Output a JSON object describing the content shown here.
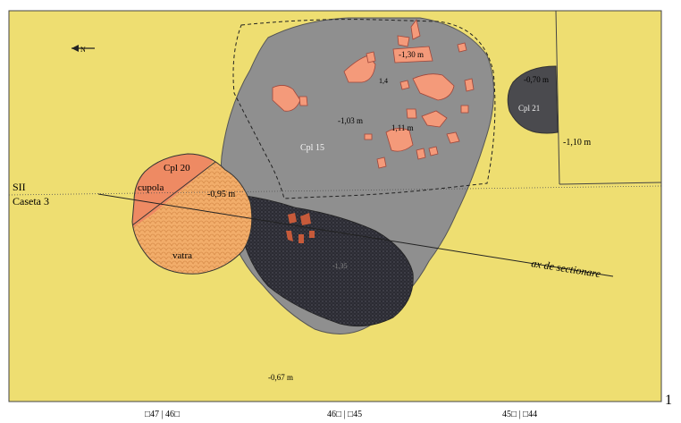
{
  "north_arrow": "N",
  "labels": {
    "section_line": "SII",
    "caseta": "Caseta 3",
    "axis": "ax de sectionare",
    "cpl15": "Cpl 15",
    "cpl20": "Cpl 20",
    "cupola": "cupola",
    "vatra": "vatra",
    "cpl21": "Cpl 21"
  },
  "depths": {
    "d130": "-1,30 m",
    "d103": "-1,03 m",
    "d111": "1,11 m",
    "d095": "-0,95 m",
    "d070": "-0,70 m",
    "d110": "-1,10 m",
    "d067": "-0,67 m",
    "small1": "1,4",
    "pit": "-1,35"
  },
  "bottom_labels": [
    "□47 | 46□",
    "46□ | □45",
    "45□ | □44"
  ],
  "figure_number": "1",
  "colors": {
    "background": "#eede71",
    "cpl15_fill": "#8f8f8f",
    "pit_fill": "#2c2c34",
    "burnt": "#f49a7a",
    "cupola": "#ee8a63",
    "vatra": "#f2ad6a",
    "cpl21": "#4a4a4e"
  }
}
